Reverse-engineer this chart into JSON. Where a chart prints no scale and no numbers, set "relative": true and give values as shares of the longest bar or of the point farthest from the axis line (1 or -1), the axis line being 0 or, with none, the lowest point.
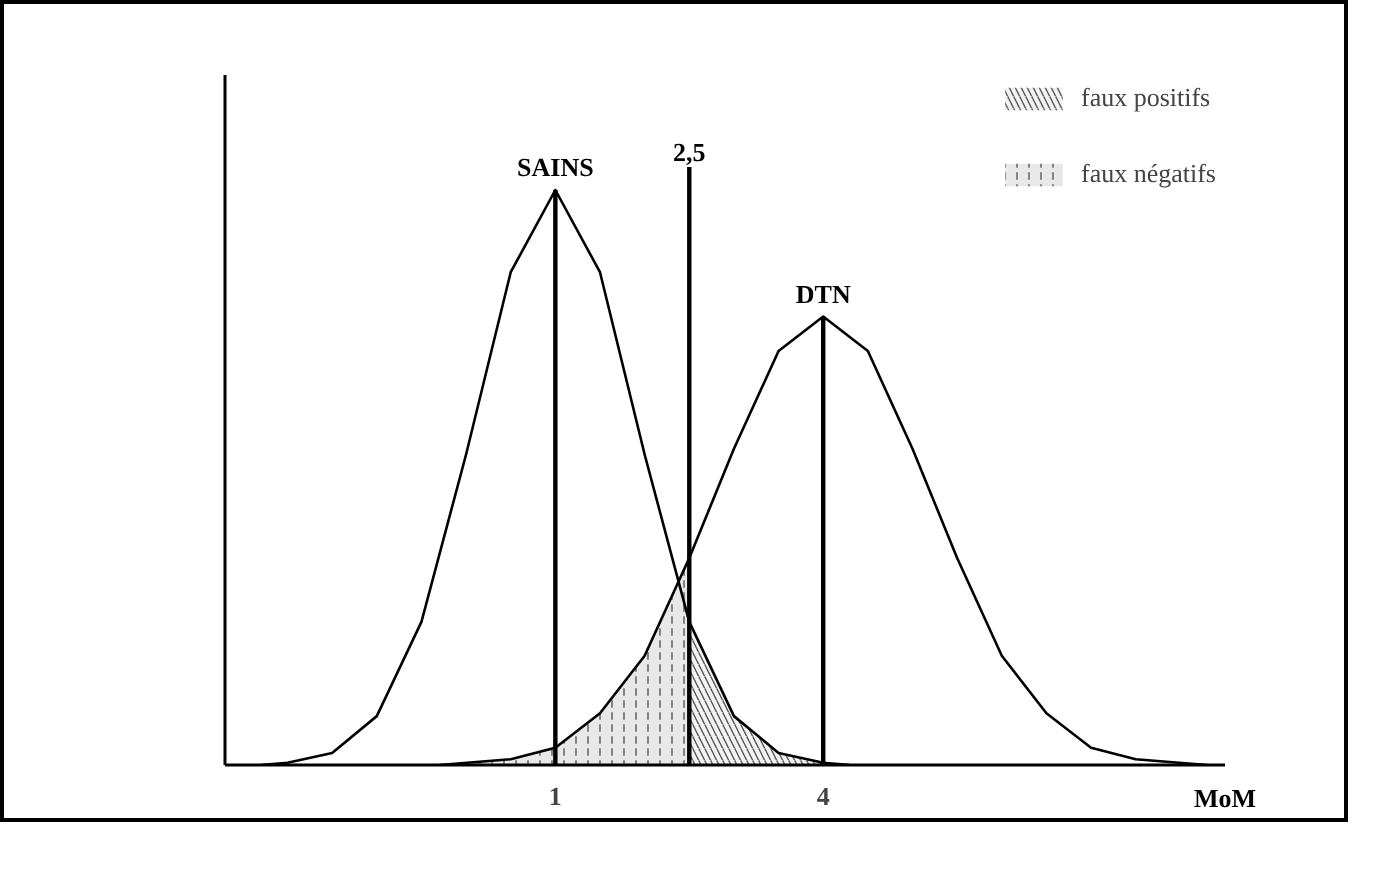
{
  "chart_data": {
    "type": "line",
    "relative": true,
    "xlabel": "MoM",
    "xlim": [
      -2.7,
      8.5
    ],
    "xticks": [
      1,
      4
    ],
    "legend": "top right",
    "grid": false,
    "tick_labels": "x",
    "series": [
      {
        "name": "SAINS",
        "color": "#000000",
        "x": [
          -2.3,
          -2,
          -1.5,
          -1,
          -0.5,
          0,
          0.5,
          1,
          1.5,
          2,
          2.5,
          3,
          3.5,
          4,
          4.3
        ],
        "values": [
          0,
          0.004,
          0.021,
          0.085,
          0.249,
          0.54,
          0.857,
          1,
          0.857,
          0.54,
          0.249,
          0.085,
          0.021,
          0.004,
          0
        ]
      },
      {
        "name": "DTN",
        "color": "#000000",
        "x": [
          -0.3,
          0.5,
          1,
          1.5,
          2,
          2.5,
          3,
          3.5,
          4,
          4.5,
          5,
          5.5,
          6,
          6.5,
          7,
          7.5,
          8.3
        ],
        "values": [
          0,
          0.01,
          0.03,
          0.09,
          0.19,
          0.36,
          0.55,
          0.72,
          0.78,
          0.72,
          0.55,
          0.36,
          0.19,
          0.09,
          0.03,
          0.01,
          0
        ]
      },
      {
        "name": "faux positifs",
        "type": "area",
        "color": "#f2f2f2",
        "x": [
          2.5,
          3,
          3.5,
          4,
          4.3
        ],
        "values": [
          0.249,
          0.085,
          0.021,
          0.004,
          0
        ]
      },
      {
        "name": "faux négatifs",
        "type": "area",
        "color": "#e8e8e8",
        "x": [
          -0.3,
          0.5,
          1,
          1.5,
          2,
          2.5
        ],
        "values": [
          0,
          0.01,
          0.03,
          0.09,
          0.19,
          0.36
        ]
      }
    ],
    "ref_lines": [
      {
        "axis": "x",
        "value": 1,
        "label": null
      },
      {
        "axis": "x",
        "value": 4,
        "label": null
      },
      {
        "axis": "x",
        "value": 2.5,
        "label": "2,5"
      }
    ]
  }
}
